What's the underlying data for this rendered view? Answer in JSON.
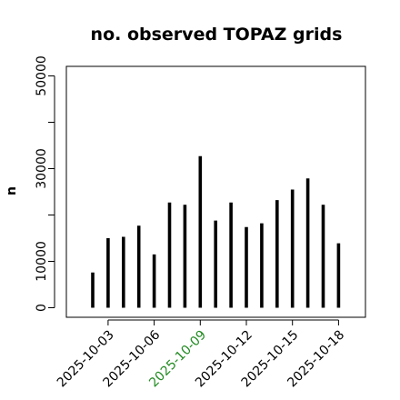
{
  "chart_data": {
    "type": "bar",
    "title": "no. observed TOPAZ grids",
    "xlabel": "",
    "ylabel": "n",
    "ylim": [
      0,
      53000
    ],
    "y_ticks": [
      0,
      10000,
      20000,
      30000,
      40000,
      50000
    ],
    "y_tick_labels": [
      "0",
      "10000",
      "",
      "30000",
      "",
      "50000"
    ],
    "x_tick_labels": [
      "2025-10-03",
      "2025-10-06",
      "2025-10-09",
      "2025-10-12",
      "2025-10-15",
      "2025-10-18"
    ],
    "x_tick_label_colors": [
      "#000000",
      "#000000",
      "#228B22",
      "#000000",
      "#000000",
      "#000000"
    ],
    "categories": [
      "2025-10-02",
      "2025-10-03",
      "2025-10-04",
      "2025-10-05",
      "2025-10-06",
      "2025-10-07",
      "2025-10-08",
      "2025-10-09",
      "2025-10-10",
      "2025-10-11",
      "2025-10-12",
      "2025-10-13",
      "2025-10-14",
      "2025-10-15",
      "2025-10-16",
      "2025-10-17",
      "2025-10-18"
    ],
    "values": [
      7600,
      15000,
      15300,
      17700,
      11500,
      22700,
      22200,
      32700,
      18800,
      22700,
      17400,
      18200,
      23200,
      25500,
      27900,
      22200,
      13900
    ],
    "bar_color": "#000000",
    "grid": false
  }
}
